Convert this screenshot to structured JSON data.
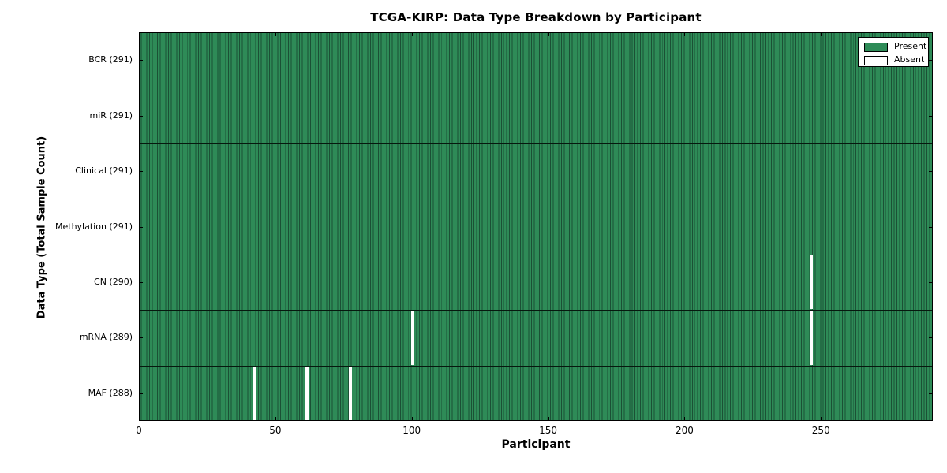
{
  "title": "TCGA-KIRP: Data Type Breakdown by Participant",
  "axes": {
    "x_label": "Participant",
    "y_label": "Data Type (Total Sample Count)"
  },
  "legend": {
    "present_label": "Present",
    "absent_label": "Absent"
  },
  "chart_data": {
    "type": "heatmap",
    "title": "TCGA-KIRP: Data Type Breakdown by Participant",
    "xlabel": "Participant",
    "ylabel": "Data Type (Total Sample Count)",
    "x_range": [
      0,
      291
    ],
    "n_participants": 291,
    "x_ticks": [
      0,
      50,
      100,
      150,
      200,
      250
    ],
    "grid": false,
    "legend_position": "upper right",
    "rows": [
      {
        "label": "BCR",
        "total": 291,
        "display": "BCR (291)",
        "absent_participants": []
      },
      {
        "label": "miR",
        "total": 291,
        "display": "miR (291)",
        "absent_participants": []
      },
      {
        "label": "Clinical",
        "total": 291,
        "display": "Clinical (291)",
        "absent_participants": []
      },
      {
        "label": "Methylation",
        "total": 291,
        "display": "Methylation (291)",
        "absent_participants": []
      },
      {
        "label": "CN",
        "total": 290,
        "display": "CN (290)",
        "absent_participants": [
          246
        ]
      },
      {
        "label": "mRNA",
        "total": 289,
        "display": "mRNA (289)",
        "absent_participants": [
          100,
          246
        ]
      },
      {
        "label": "MAF",
        "total": 288,
        "display": "MAF (288)",
        "absent_participants": [
          42,
          61,
          77
        ]
      }
    ],
    "legend": [
      {
        "label": "Present",
        "color": "#2e8b57"
      },
      {
        "label": "Absent",
        "color": "#ffffff"
      }
    ],
    "colors": {
      "present_fill": "#2e8b57",
      "bar_edge": "#1b5135",
      "absent": "#ffffff",
      "frame": "#000000"
    }
  }
}
